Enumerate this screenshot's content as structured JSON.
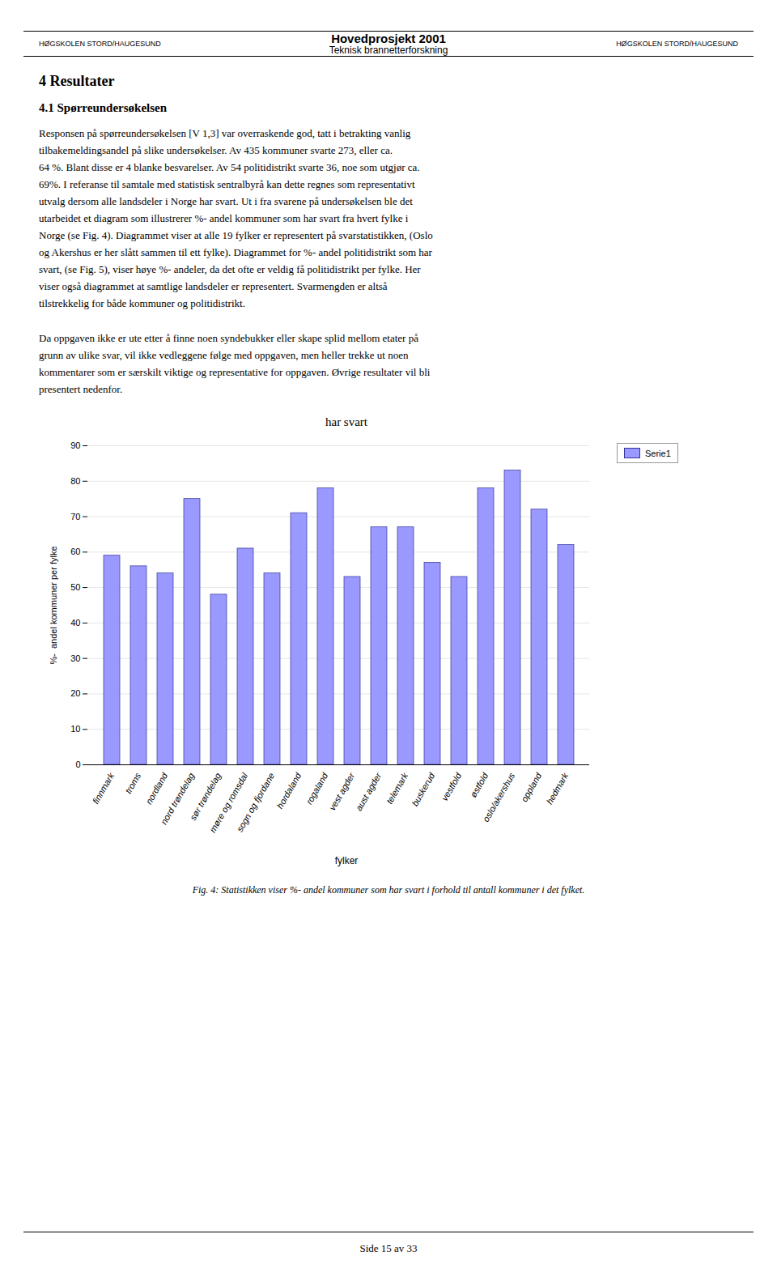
{
  "header_title": "Hovedprosjekt 2001",
  "header_subtitle": "Teknisk brannetterforskning",
  "inst_left": "HØGSKOLEN STORD/HAUGESUND",
  "inst_right": "HØGSKOLEN STORD/HAUGESUND",
  "section_heading": "4   Resultater",
  "subsection_heading": "4.1   Spørreundersøkelsen",
  "body1": "Responsen på spørreundersøkelsen [V 1,3] var overraskende god, tatt i betrakting vanlig\ntilbakemeldingsandel på slike undersøkelser. Av 435 kommuner svarte 273, eller ca.\n64 %. Blant disse er 4 blanke besvarelser. Av 54 politidistrikt svarte 36, noe som utgjør ca.\n69%. I referanse til samtale med statistisk sentralbyrå kan dette regnes som representativt\nutvalg dersom alle landsdeler i Norge har svart. Ut i fra svarene på undersøkelsen ble det\nutarbeidet et diagram som illustrerer %- andel kommuner som har svart fra hvert fylke i\nNorge (se Fig. 4). Diagrammet viser at alle 19 fylker er representert på svarstatistikken, (Oslo\nog Akershus er her slått sammen til ett fylke). Diagrammet for %- andel politidistrikt som har\nsvart, (se Fig. 5), viser høye %- andeler, da det ofte er veldig få politidistrikt per fylke. Her\nviser også diagrammet at samtlige landsdeler er representert. Svarmengden er altså\ntilstrekkelig for både kommuner og politidistrikt.",
  "body2": "Da oppgaven ikke er ute etter å finne noen syndebukker eller skape splid mellom etater på\ngrunn av ulike svar, vil ikke vedleggene følge med oppgaven, men heller trekke ut noen\nkommentarer som er særskilt viktige og representative for oppgaven. Øvrige resultater vil bli\npresentert nedenfor.",
  "fig_caption": "Fig. 4: Statistikken viser %- andel kommuner som  har svart i forhold til antall kommuner i det fylket.",
  "page_text": "Side 15 av 33",
  "chart_data": {
    "type": "bar",
    "title": "har svart",
    "x_label": "fylker",
    "y_label": "%-  andel kommuner per fylke",
    "categories": [
      "finnmark",
      "troms",
      "nordland",
      "nord trøndelag",
      "sør trøndelag",
      "møre og romsdal",
      "sogn og fjordane",
      "hordaland",
      "rogaland",
      "vest agder",
      "aust agder",
      "telemark",
      "buskerud",
      "vestfold",
      "østfold",
      "oslo/akershus",
      "oppland",
      "hedmark"
    ],
    "series": [
      {
        "name": "Serie1",
        "color": "#9999FF",
        "values": [
          59,
          56,
          54,
          75,
          48,
          61,
          54,
          71,
          78,
          53,
          67,
          67,
          57,
          53,
          78,
          83,
          72,
          62
        ]
      }
    ],
    "ylim": [
      0,
      90
    ],
    "yticks": [
      0,
      10,
      20,
      30,
      40,
      50,
      60,
      70,
      80,
      90
    ],
    "grid": true,
    "legend": "upper right"
  }
}
